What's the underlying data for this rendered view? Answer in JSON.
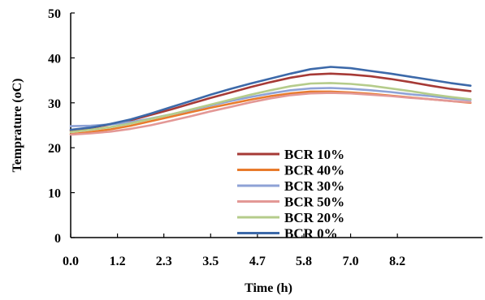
{
  "chart_data": {
    "type": "line",
    "xlabel": "Time (h)",
    "ylabel": "Temprature (oC)",
    "xlim": [
      0,
      10.3
    ],
    "ylim": [
      0,
      50
    ],
    "x_ticks": [
      0,
      1.17,
      2.33,
      3.5,
      4.67,
      5.83,
      7.0,
      8.17
    ],
    "x_tick_labels": [
      "0.0",
      "1.2",
      "2.3",
      "3.5",
      "4.7",
      "5.8",
      "7.0",
      "8.2"
    ],
    "y_ticks": [
      0,
      10,
      20,
      30,
      40,
      50
    ],
    "y_tick_labels": [
      "0",
      "10",
      "20",
      "30",
      "40",
      "50"
    ],
    "grid": false,
    "legend_position": "center",
    "x": [
      0,
      0.5,
      1.0,
      1.5,
      2.0,
      2.5,
      3.0,
      3.5,
      4.0,
      4.5,
      5.0,
      5.5,
      6.0,
      6.5,
      7.0,
      7.5,
      8.0,
      8.5,
      9.0,
      9.5,
      10.0
    ],
    "series": [
      {
        "name": "BCR 10%",
        "color": "#a63a36",
        "values": [
          23.8,
          24.4,
          25.2,
          26.1,
          27.3,
          28.5,
          29.8,
          31.1,
          32.3,
          33.5,
          34.6,
          35.6,
          36.3,
          36.5,
          36.3,
          35.9,
          35.3,
          34.6,
          33.8,
          33.1,
          32.6
        ]
      },
      {
        "name": "BCR 40%",
        "color": "#e87b2c",
        "values": [
          23.0,
          23.5,
          24.1,
          24.9,
          25.9,
          26.9,
          27.9,
          28.9,
          29.8,
          30.7,
          31.5,
          32.1,
          32.5,
          32.5,
          32.3,
          32.0,
          31.6,
          31.2,
          30.8,
          30.4,
          30.0
        ]
      },
      {
        "name": "BCR 30%",
        "color": "#8ea2d6",
        "values": [
          24.8,
          24.9,
          25.2,
          25.7,
          26.5,
          27.4,
          28.4,
          29.4,
          30.4,
          31.3,
          32.1,
          32.8,
          33.2,
          33.3,
          33.1,
          32.8,
          32.4,
          31.9,
          31.5,
          31.0,
          30.6
        ]
      },
      {
        "name": "BCR 50%",
        "color": "#e39896",
        "values": [
          22.9,
          23.2,
          23.6,
          24.2,
          25.0,
          26.0,
          27.0,
          28.1,
          29.1,
          30.1,
          31.0,
          31.7,
          32.1,
          32.2,
          32.1,
          31.8,
          31.5,
          31.1,
          30.8,
          30.4,
          30.1
        ]
      },
      {
        "name": "BCR 20%",
        "color": "#b5cc8b",
        "values": [
          23.5,
          24.0,
          24.6,
          25.4,
          26.4,
          27.4,
          28.5,
          29.6,
          30.7,
          31.8,
          32.8,
          33.7,
          34.3,
          34.4,
          34.2,
          33.8,
          33.2,
          32.6,
          31.9,
          31.3,
          30.8
        ]
      },
      {
        "name": "BCR 0%",
        "color": "#3c69a9",
        "values": [
          24.0,
          24.5,
          25.3,
          26.3,
          27.6,
          29.0,
          30.4,
          31.8,
          33.1,
          34.3,
          35.4,
          36.5,
          37.5,
          38.0,
          37.7,
          37.1,
          36.5,
          35.8,
          35.1,
          34.4,
          33.8
        ]
      }
    ]
  }
}
